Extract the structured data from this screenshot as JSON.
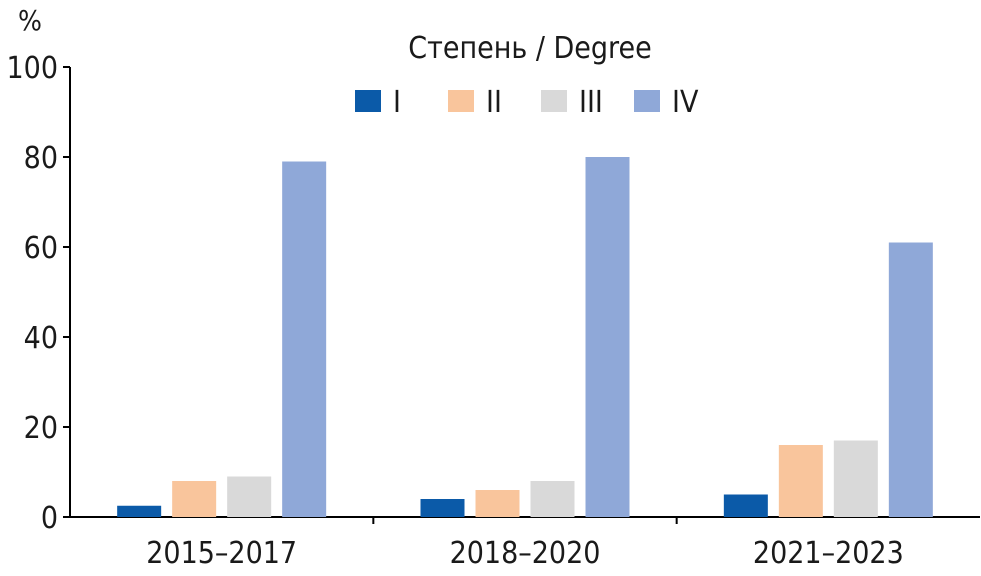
{
  "chart_data": {
    "type": "bar",
    "unit": "%",
    "categories": [
      "2015–2017",
      "2018–2020",
      "2021–2023"
    ],
    "series": [
      {
        "name": "I",
        "color": "#0b5aa8",
        "values": [
          2.5,
          4,
          5
        ]
      },
      {
        "name": "II",
        "color": "#f9c59c",
        "values": [
          8,
          6,
          16
        ]
      },
      {
        "name": "III",
        "color": "#d9d9d9",
        "values": [
          9,
          8,
          17
        ]
      },
      {
        "name": "IV",
        "color": "#8fa8d8",
        "values": [
          79,
          80,
          61
        ]
      }
    ],
    "legend_title": "Степень / Degree",
    "legend_position": "top-center",
    "ylim": [
      0,
      100
    ],
    "yticks": [
      0,
      20,
      40,
      60,
      80,
      100
    ],
    "grid": false
  }
}
